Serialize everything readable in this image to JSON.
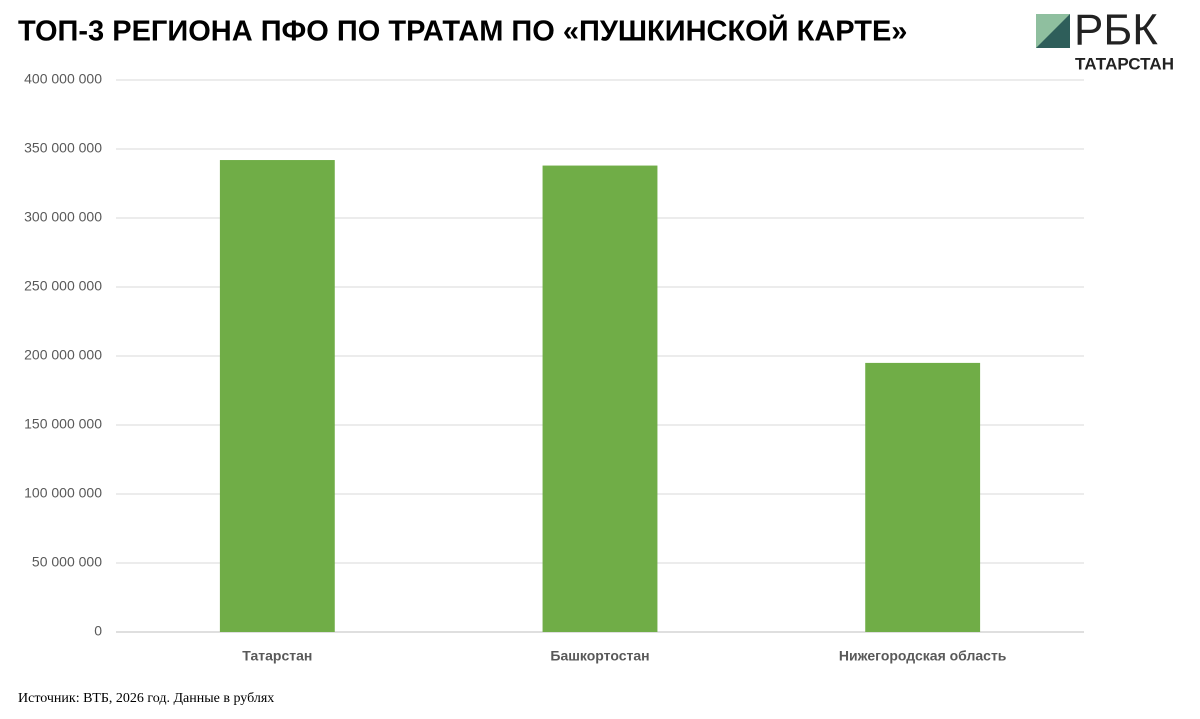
{
  "chart_data": {
    "type": "bar",
    "title": "ТОП-3 РЕГИОНА ПФО ПО ТРАТАМ ПО «ПУШКИНСКОЙ КАРТЕ»",
    "source": "Источник: ВТБ, 2026 год. Данные в рублях",
    "categories": [
      "Татарстан",
      "Башкортостан",
      "Нижегородская область"
    ],
    "values": [
      342000000,
      338000000,
      195000000
    ],
    "color": "#70ad47",
    "ylim": [
      0,
      400000000
    ],
    "yticks": [
      0,
      {
        "value": 50000000,
        "label": "50 000 000"
      },
      {
        "value": 100000000,
        "label": "100 000 000"
      },
      {
        "value": 150000000,
        "label": "150 000 000"
      },
      {
        "value": 200000000,
        "label": "200 000 000"
      },
      {
        "value": 250000000,
        "label": "250 000 000"
      },
      {
        "value": 300000000,
        "label": "300 000 000"
      },
      {
        "value": 350000000,
        "label": "350 000 000"
      },
      {
        "value": 400000000,
        "label": "400 000 000"
      }
    ],
    "grid": true
  },
  "logo": {
    "name": "РБК",
    "region": "ТАТАРСТАН"
  }
}
